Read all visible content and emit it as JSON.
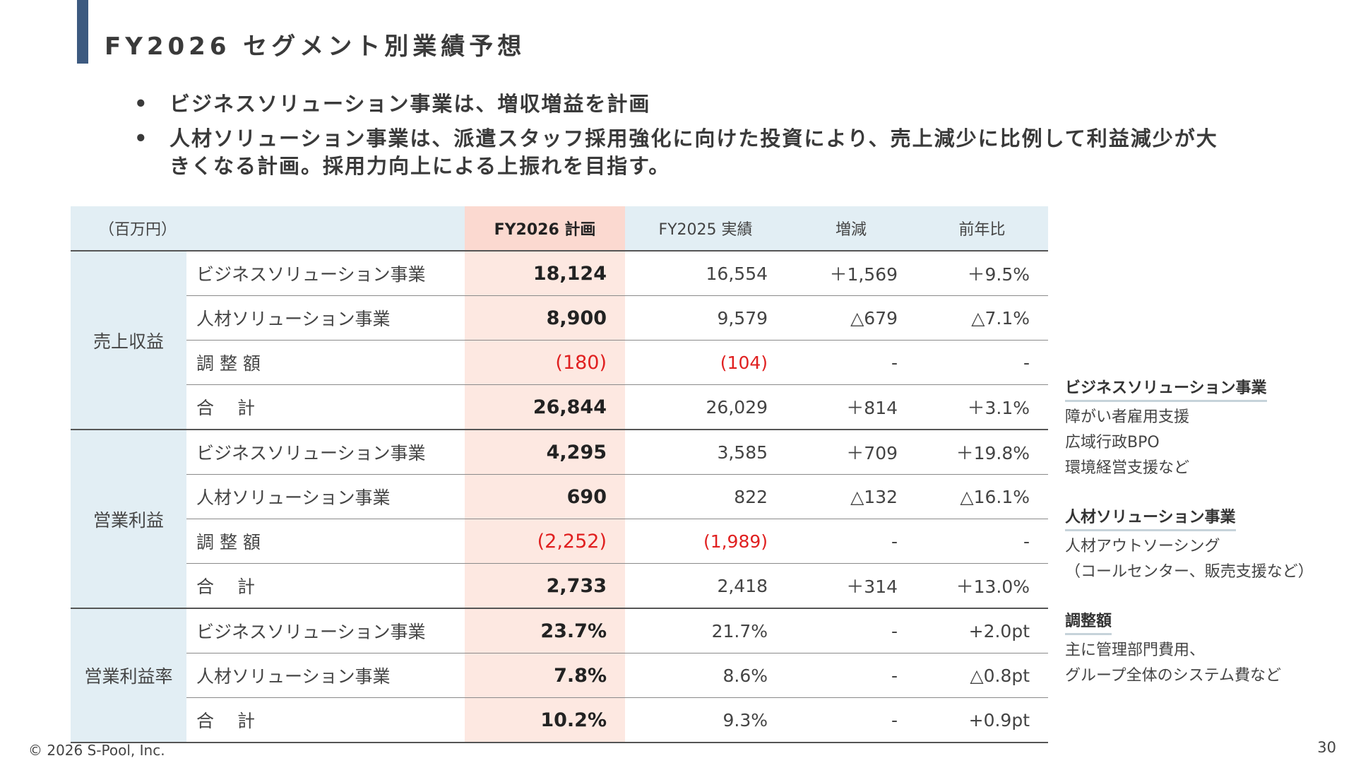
{
  "title": "FY2026 セグメント別業績予想",
  "bullets": [
    "ビジネスソリューション事業は、増収増益を計画",
    "人材ソリューション事業は、派遣スタッフ採用強化に向けた投資により、売上減少に比例して利益減少が大きくなる計画。採用力向上による上振れを目指す。"
  ],
  "bullet_marker": "•",
  "table": {
    "unit": "（百万円）",
    "headers": [
      "FY2026 計画",
      "FY2025 実績",
      "増減",
      "前年比"
    ],
    "groups": [
      {
        "name": "売上収益",
        "rows": [
          {
            "label": "ビジネスソリューション事業",
            "plan": "18,124",
            "actual": "16,554",
            "change": "＋1,569",
            "yoy": "＋9.5%"
          },
          {
            "label": "人材ソリューション事業",
            "plan": "8,900",
            "actual": "9,579",
            "change": "△679",
            "yoy": "△7.1%"
          },
          {
            "label": "調 整 額",
            "plan": "(180)",
            "actual": "(104)",
            "change": "-",
            "yoy": "-"
          },
          {
            "label": "合　 計",
            "plan": "26,844",
            "actual": "26,029",
            "change": "＋814",
            "yoy": "＋3.1%"
          }
        ]
      },
      {
        "name": "営業利益",
        "rows": [
          {
            "label": "ビジネスソリューション事業",
            "plan": "4,295",
            "actual": "3,585",
            "change": "＋709",
            "yoy": "＋19.8%"
          },
          {
            "label": "人材ソリューション事業",
            "plan": "690",
            "actual": "822",
            "change": "△132",
            "yoy": "△16.1%"
          },
          {
            "label": "調 整 額",
            "plan": "(2,252)",
            "actual": "(1,989)",
            "change": "-",
            "yoy": "-"
          },
          {
            "label": "合　 計",
            "plan": "2,733",
            "actual": "2,418",
            "change": "＋314",
            "yoy": "＋13.0%"
          }
        ]
      },
      {
        "name": "営業利益率",
        "rows": [
          {
            "label": "ビジネスソリューション事業",
            "plan": "23.7%",
            "actual": "21.7%",
            "change": "-",
            "yoy": "+2.0pt"
          },
          {
            "label": "人材ソリューション事業",
            "plan": "7.8%",
            "actual": "8.6%",
            "change": "-",
            "yoy": "△0.8pt"
          },
          {
            "label": "合　 計",
            "plan": "10.2%",
            "actual": "9.3%",
            "change": "-",
            "yoy": "+0.9pt"
          }
        ]
      }
    ]
  },
  "side_notes": [
    {
      "heading": "ビジネスソリューション事業",
      "lines": [
        "障がい者雇用支援",
        "広域行政BPO",
        "環境経営支援など"
      ]
    },
    {
      "heading": "人材ソリューション事業",
      "lines": [
        "人材アウトソーシング",
        "（コールセンター、販売支援など）"
      ]
    },
    {
      "heading": "調整額",
      "lines": [
        "主に管理部門費用、",
        "グループ全体のシステム費など"
      ]
    }
  ],
  "footer": {
    "copyright": "© 2026 S-Pool, Inc.",
    "page_number": "30"
  },
  "colors": {
    "title_accent": "#3d5a80",
    "header_bg": "#e2eef4",
    "plan_header_bg": "#fbd9d0",
    "plan_cell_bg": "#fde8e1",
    "negative_text": "#e02020"
  }
}
